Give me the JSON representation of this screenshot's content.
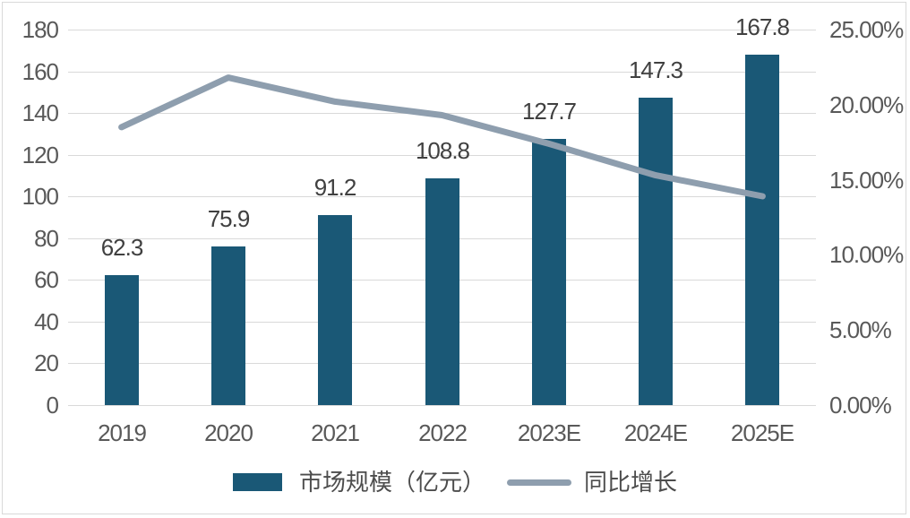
{
  "colors": {
    "bar": "#1A5876",
    "line": "#8E9EAE",
    "grid": "#D9D9D9",
    "axis_text": "#595959",
    "data_label_text": "#404040",
    "legend_text": "#4D4D4D",
    "background": "#FFFFFF",
    "border": "#D9D9D9"
  },
  "chart_data": {
    "type": "bar",
    "subtype": "combo-bar-line",
    "title": "",
    "categories": [
      "2019",
      "2020",
      "2021",
      "2022",
      "2023E",
      "2024E",
      "2025E"
    ],
    "series": [
      {
        "name": "市场规模（亿元）",
        "type": "bar",
        "axis": "left",
        "values": [
          62.3,
          75.9,
          91.2,
          108.8,
          127.7,
          147.3,
          167.8
        ],
        "data_labels": [
          "62.3",
          "75.9",
          "91.2",
          "108.8",
          "127.7",
          "147.3",
          "167.8"
        ],
        "color": "#1A5876"
      },
      {
        "name": "同比增长",
        "type": "line",
        "axis": "right",
        "values_pct": [
          18.5,
          21.8,
          20.2,
          19.3,
          17.4,
          15.3,
          13.9
        ],
        "color": "#8E9EAE"
      }
    ],
    "left_axis": {
      "min": 0,
      "max": 180,
      "step": 20,
      "tick_labels": [
        "0",
        "20",
        "40",
        "60",
        "80",
        "100",
        "120",
        "140",
        "160",
        "180"
      ]
    },
    "right_axis": {
      "min": 0,
      "max": 25,
      "step": 5,
      "tick_labels": [
        "0.00%",
        "5.00%",
        "10.00%",
        "15.00%",
        "20.00%",
        "25.00%"
      ]
    },
    "grid": true,
    "legend_position": "bottom"
  }
}
